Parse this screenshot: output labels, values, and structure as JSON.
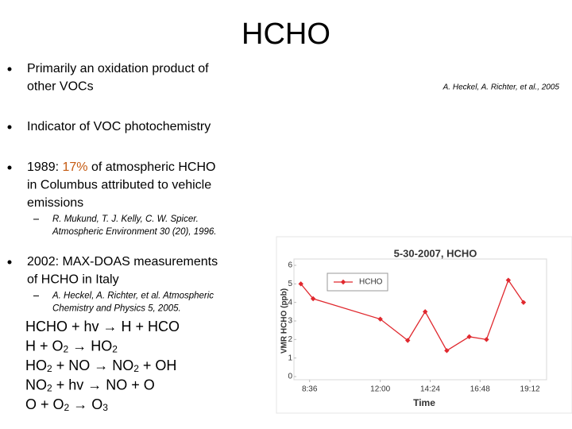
{
  "slide": {
    "title": "HCHO",
    "citation": "A. Heckel, A. Richter, et al., 2005",
    "bullets": [
      {
        "lines": [
          [
            "Primarily an oxidation product of"
          ],
          [
            "other VOCs"
          ]
        ]
      },
      {
        "lines": [
          [
            "Indicator of VOC photochemistry"
          ]
        ]
      },
      {
        "lines": [
          [
            "1989: ",
            {
              "text": "17%",
              "color": "#c55a11"
            },
            " of atmospheric HCHO"
          ],
          [
            "in Columbus attributed to vehicle"
          ],
          [
            "emissions"
          ]
        ],
        "sub": [
          "R. Mukund, T. J. Kelly, C. W. Spicer.",
          "Atmospheric Environment 30 (20), 1996."
        ]
      },
      {
        "lines": [
          [
            "2002: MAX-DOAS measurements"
          ],
          [
            "of HCHO in Italy"
          ]
        ],
        "sub": [
          "A. Heckel, A. Richter, et al. Atmospheric",
          "Chemistry and Physics 5, 2005."
        ]
      }
    ],
    "reactions": [
      [
        "HCHO + hv → H + HCO"
      ],
      [
        "H + O",
        {
          "sub": "2"
        },
        " → HO",
        {
          "sub": "2"
        }
      ],
      [
        "HO",
        {
          "sub": "2"
        },
        " + NO → NO",
        {
          "sub": "2"
        },
        " + OH"
      ],
      [
        "NO",
        {
          "sub": "2"
        },
        " + hv → NO + O"
      ],
      [
        "O + O",
        {
          "sub": "2"
        },
        " → O",
        {
          "sub": "3"
        }
      ]
    ]
  },
  "chart_data": {
    "type": "line",
    "title": "5-30-2007, HCHO",
    "x_label": "Time",
    "y_label": "VMR HCHO (ppb)",
    "x": [
      8.18,
      8.77,
      12.0,
      13.32,
      14.16,
      15.2,
      16.28,
      17.11,
      18.16,
      18.89
    ],
    "series": [
      {
        "name": "HCHO",
        "color": "#e0282e",
        "values": [
          5.0,
          4.2,
          3.1,
          1.95,
          3.5,
          1.4,
          2.15,
          2.0,
          5.2,
          4.0
        ]
      }
    ],
    "xlim": [
      8,
      20
    ],
    "xticks": [
      {
        "value": 8.6,
        "label": "8:36"
      },
      {
        "value": 12,
        "label": "12:00"
      },
      {
        "value": 14.4,
        "label": "14:24"
      },
      {
        "value": 16.8,
        "label": "16:48"
      },
      {
        "value": 19.2,
        "label": "19:12"
      }
    ],
    "ylim": [
      0,
      6
    ],
    "yticks": [
      0,
      1,
      2,
      3,
      4,
      5,
      6
    ],
    "legend": "top-left"
  }
}
